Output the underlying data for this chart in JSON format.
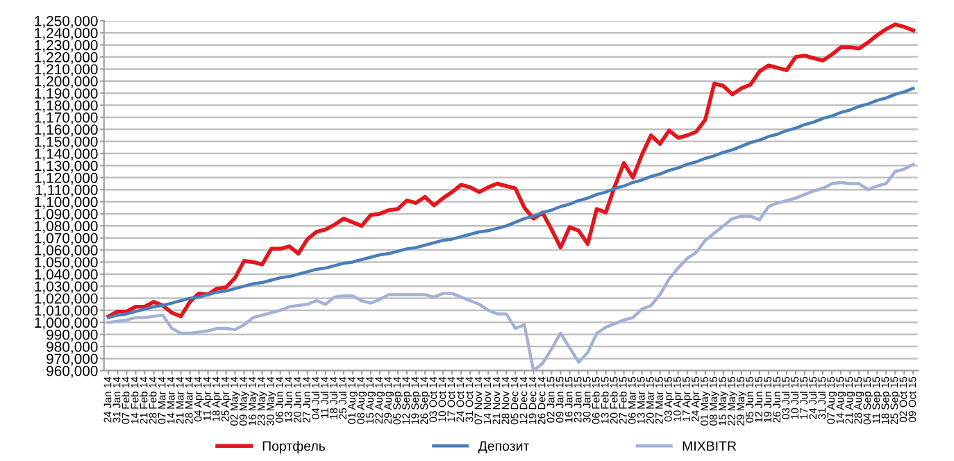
{
  "chart_data": {
    "type": "line",
    "categories": [
      "24 Jan 14",
      "31 Jan 14",
      "07 Feb 14",
      "14 Feb 14",
      "21 Feb 14",
      "28 Feb 14",
      "07 Mar 14",
      "14 Mar 14",
      "21 Mar 14",
      "28 Mar 14",
      "04 Apr 14",
      "11 Apr 14",
      "18 Apr 14",
      "25 Apr 14",
      "02 May 14",
      "09 May 14",
      "16 May 14",
      "23 May 14",
      "30 May 14",
      "06 Jun 14",
      "13 Jun 14",
      "20 Jun 14",
      "27 Jun 14",
      "04 Jul 14",
      "11 Jul 14",
      "18 Jul 14",
      "25 Jul 14",
      "01 Aug 14",
      "08 Aug 14",
      "15 Aug 14",
      "22 Aug 14",
      "29 Aug 14",
      "05 Sep 14",
      "12 Sep 14",
      "19 Sep 14",
      "26 Sep 14",
      "03 Oct 14",
      "10 Oct 14",
      "17 Oct 14",
      "24 Oct 14",
      "31 Oct 14",
      "07 Nov 14",
      "14 Nov 14",
      "21 Nov 14",
      "28 Nov 14",
      "05 Dec 14",
      "12 Dec 14",
      "19 Dec 14",
      "26 Dec 14",
      "02 Jan 15",
      "09 Jan 15",
      "16 Jan 15",
      "23 Jan 15",
      "30 Jan 15",
      "06 Feb 15",
      "13 Feb 15",
      "20 Feb 15",
      "27 Feb 15",
      "06 Mar 15",
      "13 Mar 15",
      "20 Mar 15",
      "27 Mar 15",
      "03 Apr 15",
      "10 Apr 15",
      "17 Apr 15",
      "24 Apr 15",
      "01 May 15",
      "08 May 15",
      "15 May 15",
      "22 May 15",
      "29 May 15",
      "05 Jun 15",
      "12 Jun 15",
      "19 Jun 15",
      "26 Jun 15",
      "03 Jul 15",
      "10 Jul 15",
      "17 Jul 15",
      "24 Jul 15",
      "31 Jul 15",
      "07 Aug 15",
      "14 Aug 15",
      "21 Aug 15",
      "28 Aug 15",
      "04 Sep 15",
      "11 Sep 15",
      "18 Sep 15",
      "25 Sep 15",
      "02 Oct 15",
      "09 Oct 15"
    ],
    "series": [
      {
        "name": "Портфель",
        "color": "#e3161e",
        "values": [
          1005000,
          1009000,
          1009000,
          1013000,
          1013000,
          1017000,
          1014000,
          1008000,
          1005000,
          1017000,
          1024000,
          1023000,
          1028000,
          1029000,
          1037000,
          1051000,
          1050000,
          1048000,
          1061000,
          1061000,
          1063000,
          1057000,
          1069000,
          1075000,
          1077000,
          1081000,
          1086000,
          1083000,
          1080000,
          1089000,
          1090000,
          1093000,
          1094000,
          1101000,
          1099000,
          1104000,
          1097000,
          1103000,
          1108000,
          1114000,
          1112000,
          1108000,
          1112000,
          1115000,
          1113000,
          1111000,
          1095000,
          1086000,
          1091000,
          1077000,
          1062000,
          1079000,
          1076000,
          1065000,
          1094000,
          1091000,
          1113000,
          1132000,
          1120000,
          1139000,
          1155000,
          1148000,
          1159000,
          1153000,
          1155000,
          1158000,
          1168000,
          1198000,
          1196000,
          1189000,
          1194000,
          1197000,
          1208000,
          1213000,
          1211000,
          1209000,
          1220000,
          1221000,
          1219000,
          1217000,
          1222000,
          1228000,
          1228000,
          1227000,
          1232000,
          1238000,
          1243000,
          1247000,
          1245000,
          1242000
        ]
      },
      {
        "name": "Депозит",
        "color": "#4a7ebb",
        "values": [
          1004000,
          1006000,
          1007000,
          1009000,
          1011000,
          1013000,
          1014000,
          1016000,
          1018000,
          1020000,
          1021000,
          1023000,
          1025000,
          1026000,
          1028000,
          1030000,
          1032000,
          1033000,
          1035000,
          1037000,
          1038000,
          1040000,
          1042000,
          1044000,
          1045000,
          1047000,
          1049000,
          1050000,
          1052000,
          1054000,
          1056000,
          1057000,
          1059000,
          1061000,
          1062000,
          1064000,
          1066000,
          1068000,
          1069000,
          1071000,
          1073000,
          1075000,
          1076000,
          1078000,
          1080000,
          1083000,
          1086000,
          1088000,
          1091000,
          1093000,
          1096000,
          1098000,
          1101000,
          1103000,
          1106000,
          1108000,
          1111000,
          1113000,
          1116000,
          1118000,
          1121000,
          1123000,
          1126000,
          1128000,
          1131000,
          1133000,
          1136000,
          1138000,
          1141000,
          1143000,
          1146000,
          1149000,
          1151000,
          1154000,
          1156000,
          1159000,
          1161000,
          1164000,
          1166000,
          1169000,
          1171000,
          1174000,
          1176000,
          1179000,
          1181000,
          1184000,
          1186000,
          1189000,
          1191000,
          1194000
        ]
      },
      {
        "name": "MIXBITR",
        "color": "#a3b1d6",
        "values": [
          1000000,
          1001000,
          1002000,
          1004000,
          1004000,
          1005000,
          1006000,
          995000,
          991000,
          991000,
          992000,
          993000,
          995000,
          995000,
          994000,
          998000,
          1004000,
          1006000,
          1008000,
          1010000,
          1013000,
          1014000,
          1015000,
          1018000,
          1015000,
          1021000,
          1022000,
          1022000,
          1018000,
          1016000,
          1019000,
          1023000,
          1023000,
          1023000,
          1023000,
          1023000,
          1021000,
          1024000,
          1024000,
          1021000,
          1018000,
          1015000,
          1010000,
          1007000,
          1007000,
          995000,
          998000,
          960000,
          966000,
          978000,
          991000,
          979000,
          967000,
          975000,
          991000,
          996000,
          999000,
          1002000,
          1004000,
          1011000,
          1014000,
          1023000,
          1036000,
          1045000,
          1053000,
          1058000,
          1068000,
          1074000,
          1080000,
          1086000,
          1088000,
          1088000,
          1085000,
          1096000,
          1099000,
          1101000,
          1103000,
          1106000,
          1109000,
          1111000,
          1115000,
          1116000,
          1115000,
          1115000,
          1110000,
          1113000,
          1115000,
          1125000,
          1127000,
          1131000
        ]
      }
    ],
    "ylim": [
      960000,
      1250000
    ],
    "yticks": [
      {
        "value": 960000,
        "label": "960,000"
      },
      {
        "value": 970000,
        "label": "970,000"
      },
      {
        "value": 980000,
        "label": "980,000"
      },
      {
        "value": 990000,
        "label": "990,000"
      },
      {
        "value": 1000000,
        "label": "1,000,000"
      },
      {
        "value": 1010000,
        "label": "1,010,000"
      },
      {
        "value": 1020000,
        "label": "1,020,000"
      },
      {
        "value": 1030000,
        "label": "1,030,000"
      },
      {
        "value": 1040000,
        "label": "1,040,000"
      },
      {
        "value": 1050000,
        "label": "1,050,000"
      },
      {
        "value": 1060000,
        "label": "1,060,000"
      },
      {
        "value": 1070000,
        "label": "1,070,000"
      },
      {
        "value": 1080000,
        "label": "1,080,000"
      },
      {
        "value": 1090000,
        "label": "1,090,000"
      },
      {
        "value": 1100000,
        "label": "1,100,000"
      },
      {
        "value": 1110000,
        "label": "1,110,000"
      },
      {
        "value": 1120000,
        "label": "1,120,000"
      },
      {
        "value": 1130000,
        "label": "1,130,000"
      },
      {
        "value": 1140000,
        "label": "1,140,000"
      },
      {
        "value": 1150000,
        "label": "1,150,000"
      },
      {
        "value": 1160000,
        "label": "1,160,000"
      },
      {
        "value": 1170000,
        "label": "1,170,000"
      },
      {
        "value": 1180000,
        "label": "1,180,000"
      },
      {
        "value": 1190000,
        "label": "1,190,000"
      },
      {
        "value": 1200000,
        "label": "1,200,000"
      },
      {
        "value": 1210000,
        "label": "1,210,000"
      },
      {
        "value": 1220000,
        "label": "1,220,000"
      },
      {
        "value": 1230000,
        "label": "1,230,000"
      },
      {
        "value": 1240000,
        "label": "1,240,000"
      },
      {
        "value": 1250000,
        "label": "1,250,000"
      }
    ],
    "grid": "y",
    "legend": "bottom",
    "marker": "none",
    "line_style": "solid"
  }
}
